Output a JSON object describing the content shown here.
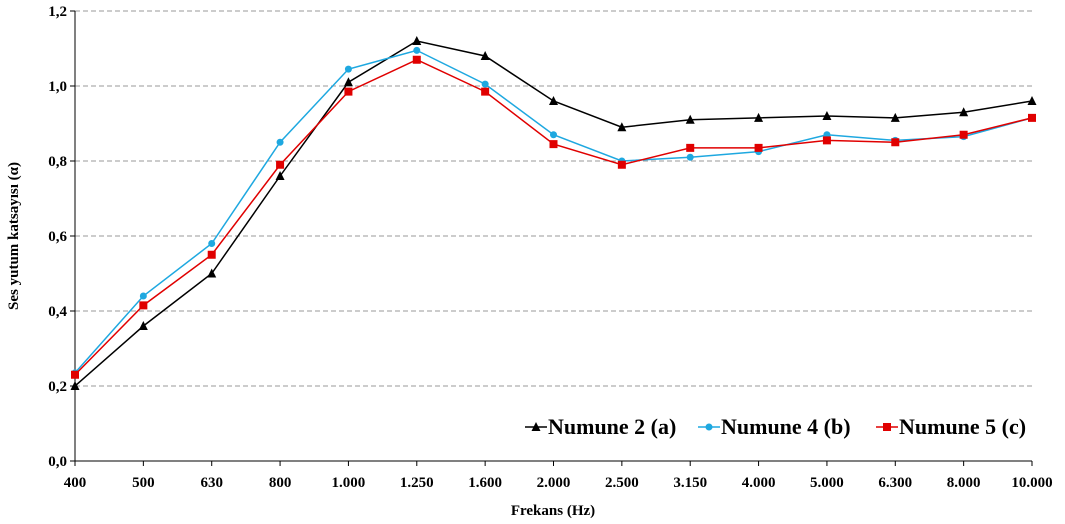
{
  "chart_data": {
    "type": "line",
    "xlabel": "Frekans (Hz)",
    "ylabel": "Ses yutum katsayısı (α)",
    "categories": [
      "400",
      "500",
      "630",
      "800",
      "1.000",
      "1.250",
      "1.600",
      "2.000",
      "2.500",
      "3.150",
      "4.000",
      "5.000",
      "6.300",
      "8.000",
      "10.000"
    ],
    "ylim": [
      0,
      1.2
    ],
    "yticks": [
      "0,0",
      "0,2",
      "0,4",
      "0,6",
      "0,8",
      "1,0",
      "1,2"
    ],
    "grid": "horizontal dashed",
    "legend_position": "bottom-right",
    "series": [
      {
        "name": "Numune 2 (a)",
        "color": "#000000",
        "marker": "triangle",
        "values": [
          0.2,
          0.36,
          0.5,
          0.76,
          1.01,
          1.12,
          1.08,
          0.96,
          0.89,
          0.91,
          0.915,
          0.92,
          0.915,
          0.93,
          0.96
        ]
      },
      {
        "name": "Numune 4 (b)",
        "color": "#1ea8e0",
        "marker": "circle",
        "values": [
          0.235,
          0.44,
          0.58,
          0.85,
          1.045,
          1.095,
          1.005,
          0.87,
          0.8,
          0.81,
          0.825,
          0.87,
          0.855,
          0.865,
          0.915
        ]
      },
      {
        "name": "Numune 5 (c)",
        "color": "#e00000",
        "marker": "square",
        "values": [
          0.23,
          0.415,
          0.55,
          0.79,
          0.985,
          1.07,
          0.985,
          0.845,
          0.79,
          0.835,
          0.835,
          0.855,
          0.85,
          0.87,
          0.915
        ]
      }
    ]
  }
}
